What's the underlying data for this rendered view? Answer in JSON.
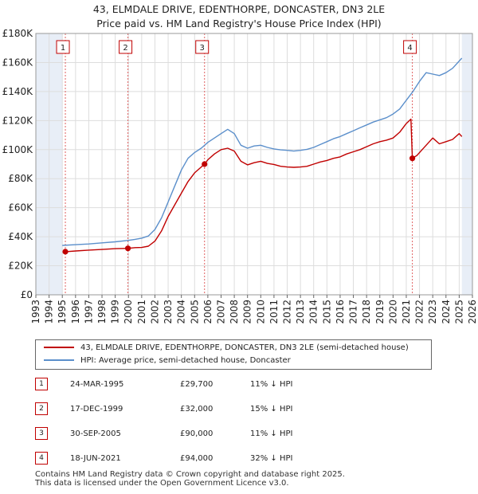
{
  "title_line1": "43, ELMDALE DRIVE, EDENTHORPE, DONCASTER, DN3 2LE",
  "title_line2": "Price paid vs. HM Land Registry's House Price Index (HPI)",
  "legend": {
    "property_label": "43, ELMDALE DRIVE, EDENTHORPE, DONCASTER, DN3 2LE (semi-detached house)",
    "hpi_label": "HPI: Average price, semi-detached house, Doncaster"
  },
  "colors": {
    "property": "#c00000",
    "hpi": "#5b8fcb",
    "grid": "#dddddd",
    "shade": "#e8eef7",
    "marker_line": "#e06060"
  },
  "sales": [
    {
      "num": "1",
      "date": "24-MAR-1995",
      "price": "£29,700",
      "hpi": "11% ↓ HPI"
    },
    {
      "num": "2",
      "date": "17-DEC-1999",
      "price": "£32,000",
      "hpi": "15% ↓ HPI"
    },
    {
      "num": "3",
      "date": "30-SEP-2005",
      "price": "£90,000",
      "hpi": "11% ↓ HPI"
    },
    {
      "num": "4",
      "date": "18-JUN-2021",
      "price": "£94,000",
      "hpi": "32% ↓ HPI"
    }
  ],
  "footer_line1": "Contains HM Land Registry data © Crown copyright and database right 2025.",
  "footer_line2": "This data is licensed under the Open Government Licence v3.0.",
  "chart_data": {
    "type": "line",
    "title": "43, ELMDALE DRIVE, EDENTHORPE, DONCASTER, DN3 2LE — Price paid vs. HM Land Registry's House Price Index (HPI)",
    "xlabel": "",
    "ylabel": "",
    "xlim": [
      1993,
      2026
    ],
    "ylim": [
      0,
      180000
    ],
    "grid": true,
    "shaded_periods": [
      [
        1993,
        1995.0
      ],
      [
        2025.2,
        2026
      ]
    ],
    "x_ticks": [
      "1993",
      "1994",
      "1995",
      "1996",
      "1997",
      "1998",
      "1999",
      "2000",
      "2001",
      "2002",
      "2003",
      "2004",
      "2005",
      "2006",
      "2007",
      "2008",
      "2009",
      "2010",
      "2011",
      "2012",
      "2013",
      "2014",
      "2015",
      "2016",
      "2017",
      "2018",
      "2019",
      "2020",
      "2021",
      "2022",
      "2023",
      "2024",
      "2025",
      "2026"
    ],
    "y_ticks": [
      "£0",
      "£20K",
      "£40K",
      "£60K",
      "£80K",
      "£100K",
      "£120K",
      "£140K",
      "£160K",
      "£180K"
    ],
    "sale_markers": [
      {
        "label": "1",
        "x": 1995.23,
        "y": 29700
      },
      {
        "label": "2",
        "x": 1999.96,
        "y": 32000
      },
      {
        "label": "3",
        "x": 2005.75,
        "y": 90000
      },
      {
        "label": "4",
        "x": 2021.46,
        "y": 94000
      }
    ],
    "series": [
      {
        "name": "43, ELMDALE DRIVE, EDENTHORPE, DONCASTER, DN3 2LE (semi-detached house)",
        "x": [
          1995.23,
          1996,
          1997,
          1998,
          1999,
          1999.96,
          2000.5,
          2001,
          2001.5,
          2002,
          2002.5,
          2003,
          2003.5,
          2004,
          2004.5,
          2005,
          2005.5,
          2005.75,
          2006,
          2006.5,
          2007,
          2007.5,
          2008,
          2008.5,
          2009,
          2009.5,
          2010,
          2010.5,
          2011,
          2011.5,
          2012,
          2012.5,
          2013,
          2013.5,
          2014,
          2014.5,
          2015,
          2015.5,
          2016,
          2016.5,
          2017,
          2017.5,
          2018,
          2018.5,
          2019,
          2019.5,
          2020,
          2020.5,
          2021,
          2021.35,
          2021.46,
          2021.8,
          2022.2,
          2022.7,
          2023,
          2023.5,
          2024,
          2024.5,
          2025,
          2025.2
        ],
        "values": [
          29700,
          30200,
          30800,
          31200,
          31800,
          32000,
          32500,
          32600,
          33500,
          37000,
          44000,
          54000,
          62000,
          70000,
          78000,
          84000,
          88000,
          90000,
          93000,
          97000,
          100000,
          101000,
          99000,
          92000,
          89500,
          91000,
          92000,
          90500,
          89800,
          88500,
          88000,
          87800,
          88000,
          88500,
          90000,
          91500,
          92500,
          94000,
          95000,
          97000,
          98500,
          100000,
          102000,
          104000,
          105500,
          106500,
          108000,
          112000,
          118000,
          121000,
          94000,
          96000,
          100000,
          105000,
          108000,
          104000,
          105500,
          107000,
          111000,
          109000
        ]
      },
      {
        "name": "HPI: Average price, semi-detached house, Doncaster",
        "x": [
          1995.0,
          1996,
          1997,
          1998,
          1999,
          2000,
          2000.5,
          2001,
          2001.5,
          2002,
          2002.5,
          2003,
          2003.5,
          2004,
          2004.5,
          2005,
          2005.5,
          2006,
          2006.5,
          2007,
          2007.5,
          2008,
          2008.5,
          2009,
          2009.5,
          2010,
          2010.5,
          2011,
          2011.5,
          2012,
          2012.5,
          2013,
          2013.5,
          2014,
          2014.5,
          2015,
          2015.5,
          2016,
          2016.5,
          2017,
          2017.5,
          2018,
          2018.5,
          2019,
          2019.5,
          2020,
          2020.5,
          2021,
          2021.5,
          2022,
          2022.5,
          2023,
          2023.5,
          2024,
          2024.5,
          2025,
          2025.2
        ],
        "values": [
          34000,
          34500,
          35000,
          35800,
          36500,
          37500,
          38200,
          39000,
          40500,
          45000,
          53000,
          64000,
          75000,
          86000,
          94000,
          98000,
          101000,
          105000,
          108000,
          111000,
          114000,
          111000,
          103000,
          101000,
          102500,
          103000,
          101500,
          100500,
          99800,
          99500,
          99000,
          99500,
          100200,
          101500,
          103500,
          105500,
          107500,
          109000,
          111000,
          113000,
          115000,
          117000,
          119000,
          120500,
          122000,
          124500,
          128000,
          134000,
          140000,
          147000,
          153000,
          152000,
          151000,
          153000,
          156000,
          161000,
          163000
        ]
      }
    ]
  }
}
